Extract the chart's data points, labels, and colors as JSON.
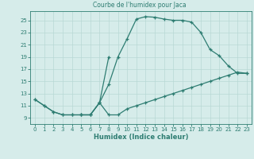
{
  "title": "Courbe de l'humidex pour Jaca",
  "xlabel": "Humidex (Indice chaleur)",
  "bg_color": "#d6ecea",
  "line_color": "#2e7d72",
  "grid_color": "#b8d8d5",
  "xlim": [
    -0.5,
    23.5
  ],
  "ylim": [
    8.0,
    26.5
  ],
  "xticks": [
    0,
    1,
    2,
    3,
    4,
    5,
    6,
    7,
    8,
    9,
    10,
    11,
    12,
    13,
    14,
    15,
    16,
    17,
    18,
    19,
    20,
    21,
    22,
    23
  ],
  "yticks": [
    9,
    11,
    13,
    15,
    17,
    19,
    21,
    23,
    25
  ],
  "line1_x": [
    0,
    1,
    2,
    3,
    4,
    5,
    6,
    7,
    8,
    9,
    10,
    11,
    12,
    13,
    14,
    15,
    16,
    17,
    18,
    19,
    20,
    21,
    22,
    23
  ],
  "line1_y": [
    12,
    11,
    10,
    9.5,
    9.5,
    9.5,
    9.5,
    11.5,
    14.5,
    19,
    22,
    25.2,
    25.6,
    25.5,
    25.2,
    25.0,
    25.0,
    24.7,
    23.0,
    20.2,
    19.2,
    17.5,
    16.3,
    16.3
  ],
  "line2_x": [
    0,
    1,
    2,
    3,
    4,
    5,
    6,
    7,
    8,
    9,
    10,
    11,
    12,
    13,
    14,
    15,
    16,
    17,
    18,
    19,
    20,
    21,
    22,
    23
  ],
  "line2_y": [
    12,
    11,
    10,
    9.5,
    9.5,
    9.5,
    9.5,
    11.5,
    9.5,
    9.5,
    10.5,
    11.0,
    11.5,
    12.0,
    12.5,
    13.0,
    13.5,
    14.0,
    14.5,
    15.0,
    15.5,
    16.0,
    16.5,
    16.3
  ],
  "line3_x": [
    5,
    6,
    7,
    8
  ],
  "line3_y": [
    9.5,
    9.5,
    11.5,
    19
  ]
}
